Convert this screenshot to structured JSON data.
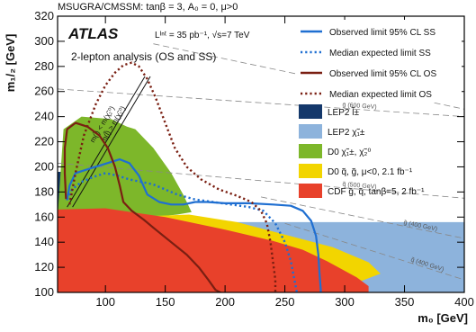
{
  "chart_data": {
    "type": "exclusion-contour",
    "model_line": "MSUGRA/CMSSM: tanβ = 3, A₀ = 0, μ>0",
    "experiment": "ATLAS",
    "luminosity": "Lᴵⁿᵗ = 35 pb⁻¹, √s=7 TeV",
    "analysis": "2-lepton analysis (OS and SS)",
    "xlabel": "m₀ [GeV]",
    "ylabel": "m₁/₂ [GeV]",
    "xlim": [
      60,
      400
    ],
    "ylim": [
      100,
      320
    ],
    "xticks": [
      "100",
      "150",
      "200",
      "250",
      "300",
      "350",
      "400"
    ],
    "yticks": [
      "100",
      "120",
      "140",
      "160",
      "180",
      "200",
      "220",
      "240",
      "260",
      "280",
      "300",
      "320"
    ],
    "series": [
      {
        "name": "Observed limit 95% CL SS",
        "style": "solid",
        "color": "#1f6fd1",
        "x": [
          68,
          70,
          75,
          85,
          95,
          105,
          112,
          120,
          128,
          135,
          145,
          155,
          165,
          175,
          185,
          200,
          220,
          240,
          255,
          265,
          272,
          276,
          278,
          279,
          280,
          280
        ],
        "y": [
          174,
          185,
          195,
          198,
          201,
          204,
          206,
          203,
          193,
          178,
          172,
          170,
          170,
          172,
          172,
          171,
          171,
          170,
          169,
          165,
          157,
          145,
          130,
          115,
          102,
          100
        ]
      },
      {
        "name": "Median expected limit SS",
        "style": "dotted",
        "color": "#1f6fd1",
        "x": [
          68,
          72,
          80,
          90,
          100,
          110,
          120,
          130,
          140,
          150,
          160,
          175,
          190,
          205,
          220,
          232,
          242,
          250,
          255,
          258,
          260
        ],
        "y": [
          174,
          182,
          188,
          192,
          195,
          193,
          190,
          188,
          186,
          182,
          178,
          174,
          172,
          170,
          168,
          165,
          155,
          140,
          125,
          110,
          100
        ]
      },
      {
        "name": "Observed limit 95% CL OS",
        "style": "solid",
        "color": "#7a1f12",
        "x": [
          67,
          66,
          66,
          68,
          75,
          85,
          95,
          102,
          108,
          112,
          115,
          122,
          132,
          142,
          155,
          168,
          178,
          186,
          192,
          196
        ],
        "y": [
          175,
          195,
          215,
          230,
          235,
          232,
          225,
          215,
          200,
          185,
          172,
          165,
          158,
          150,
          140,
          130,
          120,
          110,
          102,
          100
        ]
      },
      {
        "name": "Median expected limit OS",
        "style": "dotted",
        "color": "#7a1f12",
        "x": [
          70,
          75,
          82,
          92,
          100,
          108,
          115,
          122,
          128,
          135,
          142,
          150,
          158,
          168,
          180,
          195,
          210,
          222,
          230,
          235,
          238,
          240,
          242,
          242
        ],
        "y": [
          170,
          195,
          225,
          250,
          265,
          275,
          281,
          283,
          280,
          270,
          255,
          235,
          215,
          200,
          190,
          182,
          177,
          172,
          165,
          155,
          140,
          125,
          110,
          100
        ]
      }
    ],
    "regions": [
      {
        "name": "LEP2 l̃±",
        "color": "#14386b",
        "x": [
          60,
          75,
          75,
          60
        ],
        "y": [
          100,
          100,
          196,
          196
        ]
      },
      {
        "name": "LEP2 χ̃₁±",
        "color": "#8db3dc",
        "x": [
          60,
          400,
          400,
          260,
          160,
          100,
          60
        ],
        "y": [
          156,
          156,
          100,
          100,
          142,
          158,
          163
        ]
      },
      {
        "name": "D0 χ̃₁±, χ̃₂⁰",
        "color": "#7db72a",
        "x": [
          60,
          65,
          80,
          105,
          118,
          125,
          140,
          155,
          165,
          172,
          160,
          140,
          120,
          100,
          80,
          60
        ],
        "y": [
          160,
          230,
          240,
          238,
          232,
          230,
          215,
          195,
          178,
          164,
          162,
          160,
          158,
          156,
          156,
          157
        ]
      },
      {
        "name": "D0 q̃, g̃, μ<0, 2.1 fb⁻¹",
        "color": "#f2d500",
        "x": [
          60,
          170,
          210,
          250,
          290,
          320,
          330,
          300,
          260,
          220,
          180,
          140,
          100,
          60
        ],
        "y": [
          158,
          162,
          156,
          146,
          136,
          124,
          115,
          104,
          100,
          100,
          100,
          100,
          100,
          100
        ]
      },
      {
        "name": "CDF g̃, q̃, tanβ=5, 2 fb⁻¹",
        "color": "#e8412b",
        "x": [
          60,
          100,
          150,
          200,
          240,
          265,
          285,
          310,
          320,
          320,
          60
        ],
        "y": [
          166,
          167,
          160,
          150,
          141,
          134,
          125,
          112,
          105,
          100,
          100
        ]
      }
    ],
    "theory_curves": [
      {
        "label": "g̃ (600 GeV)",
        "x": [
          60,
          400
        ],
        "y": [
          262,
          240
        ]
      },
      {
        "label": "q̃ (600 GeV)",
        "x": [
          140,
          400
        ],
        "y": [
          298,
          246
        ]
      },
      {
        "label": "q̃ (500 GeV)",
        "x": [
          60,
          400
        ],
        "y": [
          203,
          175
        ]
      },
      {
        "label": "g̃ (400 GeV)",
        "x": [
          230,
          400
        ],
        "y": [
          176,
          143
        ]
      },
      {
        "label": "q̃ (400 GeV)",
        "x": [
          250,
          400
        ],
        "y": [
          155,
          110
        ]
      }
    ],
    "diagonal_texts": [
      "m(l̃) < m(χ̃₂⁰)",
      "m(l̃) > m(χ̃₂⁰)"
    ]
  }
}
